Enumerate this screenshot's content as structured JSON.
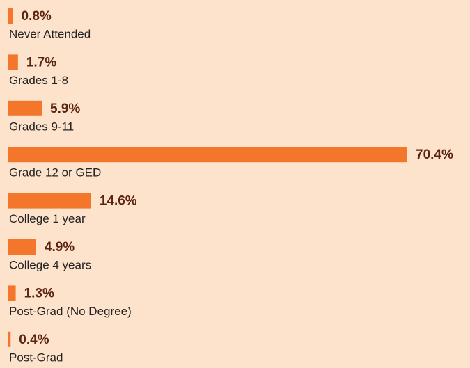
{
  "chart_data": {
    "type": "bar",
    "orientation": "horizontal",
    "categories": [
      "Never Attended",
      "Grades 1-8",
      "Grades 9-11",
      "Grade 12 or GED",
      "College 1 year",
      "College 4 years",
      "Post-Grad (No Degree)",
      "Post-Grad"
    ],
    "values": [
      0.8,
      1.7,
      5.9,
      70.4,
      14.6,
      4.9,
      1.3,
      0.4
    ],
    "value_labels": [
      "0.8%",
      "1.7%",
      "5.9%",
      "70.4%",
      "14.6%",
      "4.9%",
      "1.3%",
      "0.4%"
    ],
    "color": "#f4762b"
  }
}
